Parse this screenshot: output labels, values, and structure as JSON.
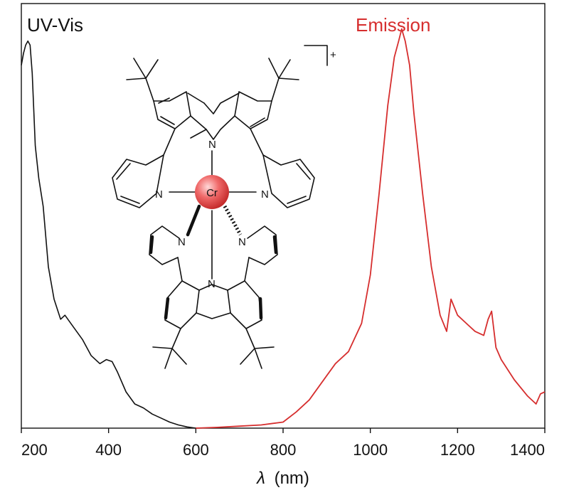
{
  "chart_data": {
    "type": "line",
    "title": "",
    "xlabel_symbol": "λ",
    "xlabel_unit": "(nm)",
    "ylabel": "",
    "xlim": [
      200,
      1400
    ],
    "ylim": [
      0,
      1.0
    ],
    "xticks": [
      200,
      400,
      600,
      800,
      1000,
      1200,
      1400
    ],
    "grid": false,
    "legend": "inline-labels",
    "series": [
      {
        "name": "UV-Vis",
        "color": "#111111",
        "x": [
          200,
          205,
          210,
          215,
          220,
          225,
          232,
          240,
          250,
          262,
          275,
          290,
          300,
          320,
          340,
          360,
          380,
          395,
          408,
          420,
          440,
          460,
          480,
          500,
          520,
          540,
          560,
          580,
          600
        ],
        "y": [
          0.9,
          0.93,
          0.95,
          0.96,
          0.95,
          0.88,
          0.7,
          0.62,
          0.55,
          0.4,
          0.32,
          0.27,
          0.28,
          0.25,
          0.22,
          0.18,
          0.16,
          0.17,
          0.165,
          0.14,
          0.09,
          0.06,
          0.05,
          0.035,
          0.025,
          0.015,
          0.008,
          0.003,
          0.0
        ]
      },
      {
        "name": "Emission",
        "color": "#d62e2e",
        "x": [
          600,
          650,
          700,
          750,
          800,
          830,
          860,
          900,
          920,
          950,
          980,
          1000,
          1020,
          1040,
          1055,
          1065,
          1072,
          1080,
          1090,
          1100,
          1120,
          1140,
          1160,
          1175,
          1185,
          1200,
          1220,
          1240,
          1260,
          1270,
          1278,
          1288,
          1300,
          1330,
          1360,
          1380,
          1390,
          1400
        ],
        "y": [
          0.0,
          0.002,
          0.005,
          0.008,
          0.015,
          0.04,
          0.07,
          0.13,
          0.16,
          0.19,
          0.26,
          0.38,
          0.58,
          0.8,
          0.92,
          0.96,
          0.99,
          0.96,
          0.9,
          0.78,
          0.58,
          0.4,
          0.28,
          0.24,
          0.32,
          0.28,
          0.26,
          0.24,
          0.23,
          0.27,
          0.29,
          0.2,
          0.17,
          0.12,
          0.08,
          0.06,
          0.085,
          0.09
        ]
      }
    ],
    "annotations": {
      "metal": "Cr",
      "nitrogen": "N",
      "charge": "+"
    }
  }
}
